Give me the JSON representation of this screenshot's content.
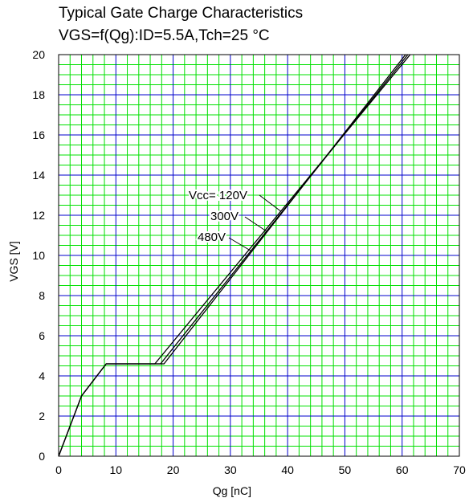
{
  "chart_data": {
    "type": "line",
    "title": "Typical Gate Charge Characteristics",
    "subtitle": "VGS=f(Qg):ID=5.5A,Tch=25 °C",
    "xlabel": "Qg [nC]",
    "ylabel": "VGS [V]",
    "xlim": [
      0,
      70
    ],
    "ylim": [
      0,
      20
    ],
    "xticks": [
      0,
      10,
      20,
      30,
      40,
      50,
      60,
      70
    ],
    "yticks": [
      0,
      2,
      4,
      6,
      8,
      10,
      12,
      14,
      16,
      18,
      20
    ],
    "grid": true,
    "minor_grid_color": "#00e000",
    "major_grid_color": "#0000cc",
    "line_color": "#000000",
    "series": [
      {
        "name": "Vcc= 120V",
        "x": [
          0,
          4,
          8.3,
          16.8,
          61.4
        ],
        "y": [
          0,
          3,
          4.6,
          4.6,
          20
        ]
      },
      {
        "name": "300V",
        "x": [
          0,
          4,
          8.3,
          17.8,
          61.0
        ],
        "y": [
          0,
          3,
          4.6,
          4.6,
          20
        ]
      },
      {
        "name": "480V",
        "x": [
          0,
          4,
          8.3,
          18.4,
          60.6
        ],
        "y": [
          0,
          3,
          4.6,
          4.6,
          20
        ]
      }
    ]
  }
}
